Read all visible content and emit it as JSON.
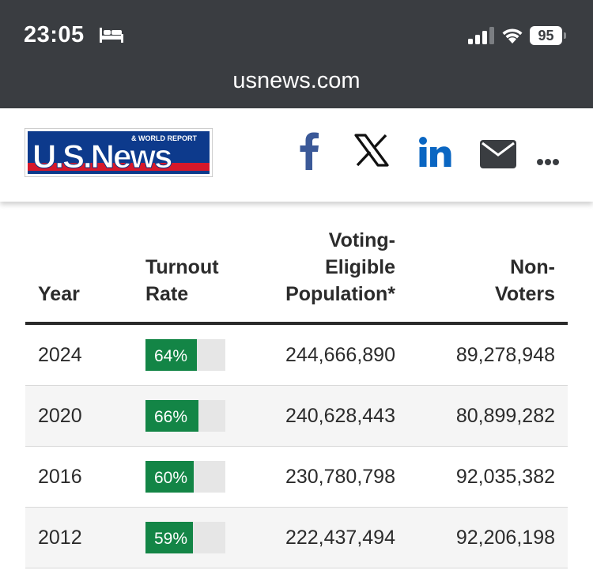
{
  "status_bar": {
    "time": "23:05",
    "battery": "95"
  },
  "browser": {
    "url": "usnews.com"
  },
  "site": {
    "logo_top_text": "& WORLD REPORT",
    "logo_main_text": "U.S.News",
    "share_icons": [
      "facebook-icon",
      "x-icon",
      "linkedin-icon",
      "mail-icon",
      "more-icon"
    ]
  },
  "table": {
    "headers": {
      "year": "Year",
      "turnout_line1": "Turnout",
      "turnout_line2": "Rate",
      "vep_line1": "Voting-",
      "vep_line2": "Eligible",
      "vep_line3": "Population*",
      "non_line1": "Non-",
      "non_line2": "Voters"
    },
    "rows": [
      {
        "year": "2024",
        "turnout": "64%",
        "turnout_value": 64,
        "vep": "244,666,890",
        "non_voters": "89,278,948"
      },
      {
        "year": "2020",
        "turnout": "66%",
        "turnout_value": 66,
        "vep": "240,628,443",
        "non_voters": "80,899,282"
      },
      {
        "year": "2016",
        "turnout": "60%",
        "turnout_value": 60,
        "vep": "230,780,798",
        "non_voters": "92,035,382"
      },
      {
        "year": "2012",
        "turnout": "59%",
        "turnout_value": 59,
        "vep": "222,437,494",
        "non_voters": "92,206,198"
      }
    ]
  },
  "colors": {
    "status_bg": "#3a3d41",
    "bar_fill": "#138546",
    "bar_track": "#e6e6e6",
    "facebook": "#3b5998",
    "linkedin": "#0a66c2",
    "logo_blue": "#0d3a8c",
    "logo_red": "#d7182a"
  }
}
